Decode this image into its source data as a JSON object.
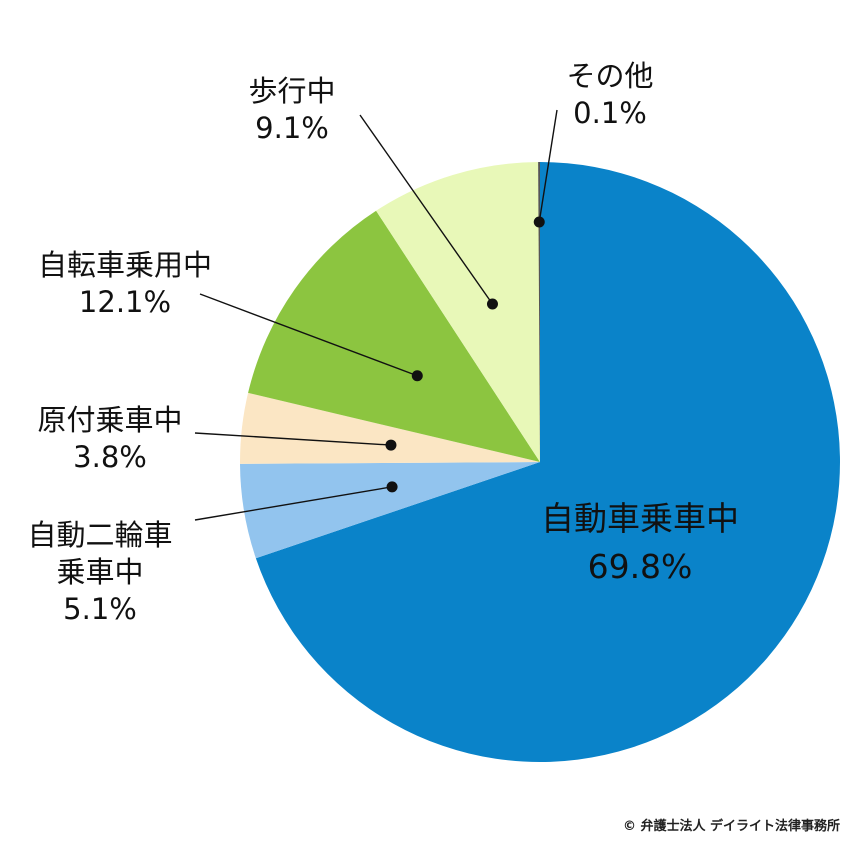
{
  "chart_data": {
    "type": "pie",
    "title": "",
    "start": "12 o'clock",
    "direction": "clockwise",
    "slices": [
      {
        "label": "自動車乗車中",
        "label_lines": [
          "自動車乗車中"
        ],
        "percent_label": "69.8%",
        "value": 69.8,
        "color": "#0a83c9"
      },
      {
        "label": "自動二輪車乗車中",
        "label_lines": [
          "自動二輪車",
          "乗車中"
        ],
        "percent_label": "5.1%",
        "value": 5.1,
        "color": "#92c4ee"
      },
      {
        "label": "原付乗車中",
        "label_lines": [
          "原付乗車中"
        ],
        "percent_label": "3.8%",
        "value": 3.8,
        "color": "#fbe6c4"
      },
      {
        "label": "自転車乗用中",
        "label_lines": [
          "自転車乗用中"
        ],
        "percent_label": "12.1%",
        "value": 12.1,
        "color": "#8cc540"
      },
      {
        "label": "歩行中",
        "label_lines": [
          "歩行中"
        ],
        "percent_label": "9.1%",
        "value": 9.1,
        "color": "#e8f8b8"
      },
      {
        "label": "その他",
        "label_lines": [
          "その他"
        ],
        "percent_label": "0.1%",
        "value": 0.1,
        "color": "#555555"
      }
    ]
  },
  "footer": {
    "copyright": "© 弁護士法人 デイライト法律事務所"
  }
}
